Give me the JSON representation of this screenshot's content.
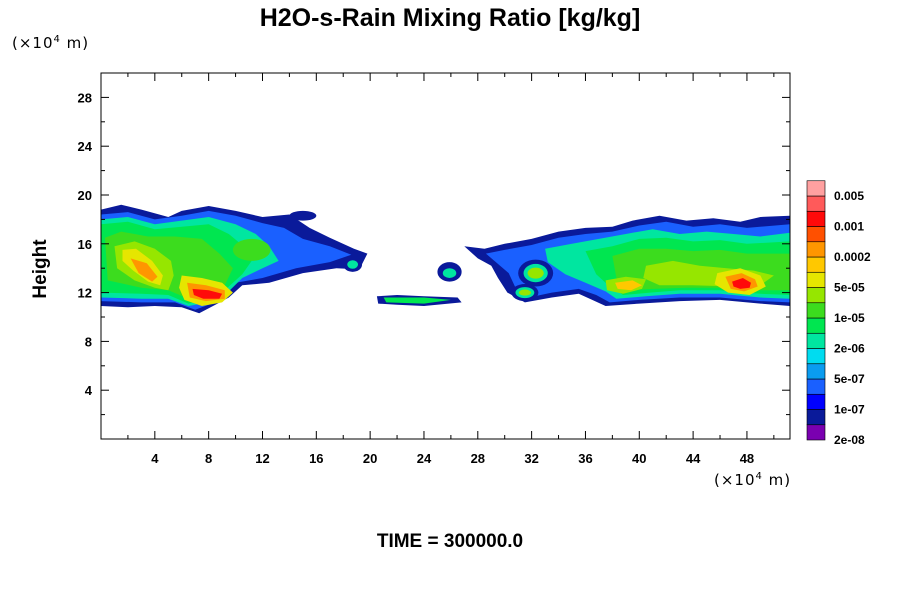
{
  "title": "H2O-s-Rain Mixing Ratio [kg/kg]",
  "y_unit": "(×10",
  "x_unit": "(×10",
  "unit_exponent": "4",
  "unit_suffix": " m)",
  "ylabel": "Height",
  "time_label": "TIME = 300000.0",
  "chart_data": {
    "type": "contour",
    "title": "H2O-s-Rain Mixing Ratio [kg/kg]",
    "xlabel": "",
    "ylabel": "Height",
    "x_unit": "(×10^4 m)",
    "y_unit": "(×10^4 m)",
    "xlim": [
      0,
      51.2
    ],
    "ylim": [
      0,
      30
    ],
    "x_ticks": [
      4,
      8,
      12,
      16,
      20,
      24,
      28,
      32,
      36,
      40,
      44,
      48
    ],
    "y_ticks": [
      4,
      8,
      12,
      16,
      20,
      24,
      28
    ],
    "colorbar": {
      "levels": [
        "0.005",
        "0.001",
        "0.0002",
        "5e-05",
        "1e-05",
        "2e-06",
        "5e-07",
        "1e-07",
        "2e-08"
      ],
      "colors": [
        "#7a00b0",
        "#0a1a9a",
        "#0000ff",
        "#1a60ff",
        "#0a9cf0",
        "#00dcf0",
        "#00e6a0",
        "#00e650",
        "#3cdc1e",
        "#96e600",
        "#e6e600",
        "#ffc800",
        "#ff9600",
        "#ff5000",
        "#ff0a0a",
        "#ff5a5a",
        "#ffa0a0"
      ]
    },
    "regions": [
      {
        "x": [
          0,
          20
        ],
        "y": [
          10.5,
          19.5
        ],
        "peak": "red",
        "peak_at": [
          7,
          11.8
        ]
      },
      {
        "x": [
          20.5,
          26.8
        ],
        "y": [
          11.0,
          11.7
        ],
        "peak": "green"
      },
      {
        "x": [
          27,
          51.2
        ],
        "y": [
          10.8,
          18.6
        ],
        "peak": "red",
        "peak_at": [
          47.5,
          12.3
        ]
      }
    ]
  }
}
